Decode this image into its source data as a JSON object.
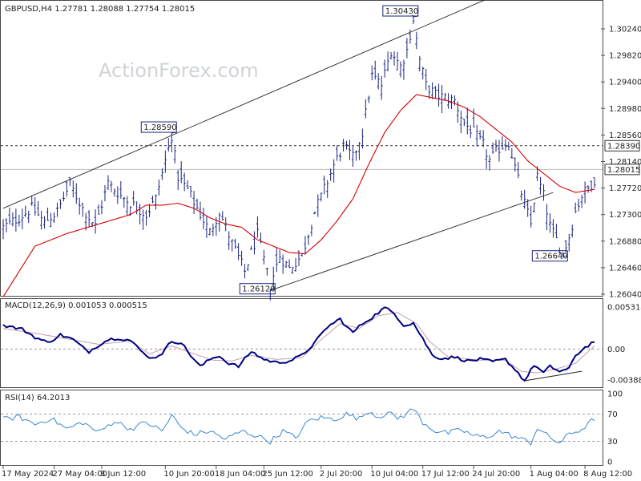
{
  "chart_data": {
    "type": "ohlc",
    "symbol_line": "GBPUSD,H4  1.27781 1.28088 1.27754 1.28015",
    "watermark": "ActionForex.com",
    "price_axis": {
      "ylim": [
        1.26,
        1.306
      ],
      "ticks": [
        "1.30240",
        "1.29820",
        "1.29400",
        "1.28980",
        "1.28560",
        "1.28140",
        "1.27720",
        "1.27300",
        "1.26880",
        "1.26460",
        "1.26040"
      ]
    },
    "current_price": "1.28015",
    "resistance_level": "1.28390",
    "annotations": [
      {
        "label": "1.30430",
        "bar": 129,
        "price": 1.3043
      },
      {
        "label": "1.28590",
        "bar": 53,
        "price": 1.2859
      },
      {
        "label": "1.26120",
        "bar": 84,
        "price": 1.2612
      },
      {
        "label": "1.26640",
        "bar": 176,
        "price": 1.2664
      }
    ],
    "price_keys": [
      [
        0,
        1.271
      ],
      [
        5,
        1.2725
      ],
      [
        9,
        1.274
      ],
      [
        13,
        1.2718
      ],
      [
        17,
        1.2735
      ],
      [
        21,
        1.2778
      ],
      [
        25,
        1.274
      ],
      [
        29,
        1.2712
      ],
      [
        33,
        1.278
      ],
      [
        37,
        1.276
      ],
      [
        41,
        1.2745
      ],
      [
        45,
        1.273
      ],
      [
        48,
        1.2755
      ],
      [
        53,
        1.2855
      ],
      [
        55,
        1.279
      ],
      [
        58,
        1.277
      ],
      [
        61,
        1.274
      ],
      [
        65,
        1.2702
      ],
      [
        68,
        1.2735
      ],
      [
        72,
        1.2685
      ],
      [
        76,
        1.264
      ],
      [
        80,
        1.2698
      ],
      [
        84,
        1.2618
      ],
      [
        87,
        1.2665
      ],
      [
        90,
        1.2645
      ],
      [
        94,
        1.2665
      ],
      [
        98,
        1.2735
      ],
      [
        101,
        1.277
      ],
      [
        104,
        1.2808
      ],
      [
        107,
        1.2838
      ],
      [
        110,
        1.282
      ],
      [
        113,
        1.286
      ],
      [
        116,
        1.295
      ],
      [
        119,
        1.2935
      ],
      [
        122,
        1.299
      ],
      [
        125,
        1.2965
      ],
      [
        127,
        1.299
      ],
      [
        129,
        1.304
      ],
      [
        131,
        1.2975
      ],
      [
        133,
        1.2935
      ],
      [
        136,
        1.292
      ],
      [
        139,
        1.2915
      ],
      [
        142,
        1.291
      ],
      [
        145,
        1.2875
      ],
      [
        148,
        1.286
      ],
      [
        151,
        1.284
      ],
      [
        153,
        1.2815
      ],
      [
        156,
        1.2835
      ],
      [
        159,
        1.2845
      ],
      [
        161,
        1.2805
      ],
      [
        163,
        1.2765
      ],
      [
        166,
        1.2715
      ],
      [
        168,
        1.279
      ],
      [
        170,
        1.276
      ],
      [
        172,
        1.2712
      ],
      [
        174,
        1.269
      ],
      [
        176,
        1.2668
      ],
      [
        178,
        1.2695
      ],
      [
        180,
        1.2735
      ],
      [
        182,
        1.276
      ],
      [
        184,
        1.2772
      ],
      [
        186,
        1.2785
      ]
    ],
    "ema_keys": [
      [
        0,
        1.26
      ],
      [
        10,
        1.268
      ],
      [
        20,
        1.27
      ],
      [
        30,
        1.2715
      ],
      [
        40,
        1.273
      ],
      [
        45,
        1.2745
      ],
      [
        50,
        1.2745
      ],
      [
        55,
        1.2748
      ],
      [
        60,
        1.274
      ],
      [
        65,
        1.2725
      ],
      [
        70,
        1.2715
      ],
      [
        75,
        1.271
      ],
      [
        80,
        1.269
      ],
      [
        85,
        1.268
      ],
      [
        90,
        1.267
      ],
      [
        95,
        1.2668
      ],
      [
        100,
        1.269
      ],
      [
        105,
        1.272
      ],
      [
        110,
        1.2755
      ],
      [
        115,
        1.281
      ],
      [
        120,
        1.286
      ],
      [
        125,
        1.2895
      ],
      [
        130,
        1.292
      ],
      [
        135,
        1.2915
      ],
      [
        140,
        1.291
      ],
      [
        145,
        1.29
      ],
      [
        150,
        1.2885
      ],
      [
        155,
        1.2865
      ],
      [
        160,
        1.2845
      ],
      [
        165,
        1.2815
      ],
      [
        170,
        1.2795
      ],
      [
        175,
        1.2775
      ],
      [
        180,
        1.2765
      ],
      [
        186,
        1.277
      ]
    ],
    "channel_upper": [
      [
        0,
        1.274
      ],
      [
        153,
        1.3073
      ]
    ],
    "channel_lower": [
      [
        84,
        1.261
      ],
      [
        173,
        1.2765
      ]
    ],
    "macd": {
      "label": "MACD(12,26,9) 0.001053 0.000515",
      "ticks": [
        "0.005314",
        "0.00",
        "-0.003885"
      ],
      "ylim": [
        -0.0045,
        0.0058
      ],
      "keys": [
        [
          0,
          0.003
        ],
        [
          6,
          0.0025
        ],
        [
          10,
          0.0015
        ],
        [
          14,
          0.0008
        ],
        [
          18,
          0.0018
        ],
        [
          22,
          0.0012
        ],
        [
          25,
          0.0002
        ],
        [
          27,
          -0.0003
        ],
        [
          30,
          0.0005
        ],
        [
          33,
          0.0012
        ],
        [
          36,
          0.0014
        ],
        [
          40,
          0.0011
        ],
        [
          44,
          -0.0005
        ],
        [
          47,
          -0.0012
        ],
        [
          50,
          -0.0005
        ],
        [
          53,
          0.001
        ],
        [
          56,
          0.0008
        ],
        [
          59,
          -0.0008
        ],
        [
          62,
          -0.0022
        ],
        [
          65,
          -0.0013
        ],
        [
          68,
          -0.0008
        ],
        [
          70,
          -0.0016
        ],
        [
          74,
          -0.0022
        ],
        [
          78,
          -0.0003
        ],
        [
          82,
          -0.0013
        ],
        [
          86,
          -0.0017
        ],
        [
          90,
          -0.0015
        ],
        [
          94,
          -0.0008
        ],
        [
          98,
          0.0008
        ],
        [
          102,
          0.0028
        ],
        [
          106,
          0.0038
        ],
        [
          108,
          0.0028
        ],
        [
          110,
          0.0021
        ],
        [
          113,
          0.0032
        ],
        [
          116,
          0.004
        ],
        [
          120,
          0.0052
        ],
        [
          123,
          0.0045
        ],
        [
          126,
          0.003
        ],
        [
          129,
          0.0033
        ],
        [
          132,
          0.0013
        ],
        [
          135,
          -0.0008
        ],
        [
          138,
          -0.0012
        ],
        [
          142,
          -0.001
        ],
        [
          146,
          -0.0015
        ],
        [
          150,
          -0.0013
        ],
        [
          154,
          -0.0016
        ],
        [
          158,
          -0.0013
        ],
        [
          162,
          -0.003
        ],
        [
          164,
          -0.004
        ],
        [
          167,
          -0.002
        ],
        [
          170,
          -0.003
        ],
        [
          172,
          -0.0022
        ],
        [
          175,
          -0.0028
        ],
        [
          178,
          -0.0025
        ],
        [
          180,
          -0.0008
        ],
        [
          183,
          0.0002
        ],
        [
          186,
          0.001
        ]
      ],
      "signal_keys": [
        [
          0,
          0.0026
        ],
        [
          10,
          0.002
        ],
        [
          20,
          0.0013
        ],
        [
          30,
          0.0006
        ],
        [
          40,
          0.001
        ],
        [
          46,
          -0.0006
        ],
        [
          53,
          0.0004
        ],
        [
          60,
          -0.0006
        ],
        [
          66,
          -0.0014
        ],
        [
          72,
          -0.0015
        ],
        [
          78,
          -0.0008
        ],
        [
          86,
          -0.0013
        ],
        [
          94,
          -0.0011
        ],
        [
          100,
          0.0012
        ],
        [
          106,
          0.0032
        ],
        [
          112,
          0.0026
        ],
        [
          118,
          0.0042
        ],
        [
          124,
          0.0046
        ],
        [
          130,
          0.0032
        ],
        [
          134,
          0.001
        ],
        [
          140,
          -0.001
        ],
        [
          150,
          -0.0014
        ],
        [
          158,
          -0.0014
        ],
        [
          163,
          -0.0028
        ],
        [
          168,
          -0.003
        ],
        [
          174,
          -0.0025
        ],
        [
          180,
          -0.0018
        ],
        [
          186,
          0.0004
        ]
      ],
      "divergence": [
        [
          164,
          -0.004
        ],
        [
          182,
          -0.0028
        ]
      ]
    },
    "rsi": {
      "label": "RSI(14) 64.2013",
      "ticks": [
        "100",
        "70",
        "30",
        "0"
      ],
      "ylim": [
        0,
        100
      ],
      "levels": [
        70,
        30
      ],
      "keys": [
        [
          0,
          62
        ],
        [
          5,
          66
        ],
        [
          10,
          55
        ],
        [
          15,
          64
        ],
        [
          20,
          48
        ],
        [
          25,
          58
        ],
        [
          30,
          43
        ],
        [
          35,
          60
        ],
        [
          40,
          48
        ],
        [
          45,
          58
        ],
        [
          50,
          45
        ],
        [
          53,
          68
        ],
        [
          56,
          50
        ],
        [
          60,
          40
        ],
        [
          65,
          45
        ],
        [
          70,
          33
        ],
        [
          75,
          45
        ],
        [
          80,
          38
        ],
        [
          84,
          30
        ],
        [
          88,
          45
        ],
        [
          92,
          35
        ],
        [
          96,
          60
        ],
        [
          100,
          65
        ],
        [
          104,
          62
        ],
        [
          108,
          70
        ],
        [
          112,
          63
        ],
        [
          115,
          75
        ],
        [
          118,
          66
        ],
        [
          121,
          72
        ],
        [
          124,
          64
        ],
        [
          126,
          68
        ],
        [
          129,
          78
        ],
        [
          132,
          58
        ],
        [
          136,
          45
        ],
        [
          140,
          42
        ],
        [
          144,
          47
        ],
        [
          148,
          38
        ],
        [
          152,
          36
        ],
        [
          156,
          45
        ],
        [
          160,
          38
        ],
        [
          163,
          33
        ],
        [
          166,
          28
        ],
        [
          168,
          50
        ],
        [
          172,
          35
        ],
        [
          175,
          28
        ],
        [
          178,
          40
        ],
        [
          182,
          48
        ],
        [
          184,
          55
        ],
        [
          186,
          64
        ]
      ]
    },
    "time_axis": [
      {
        "label": "17 May 2024",
        "bar": 0
      },
      {
        "label": "27 May 04:00",
        "bar": 16
      },
      {
        "label": "3 Jun 12:00",
        "bar": 31
      },
      {
        "label": "10 Jun 20:00",
        "bar": 51
      },
      {
        "label": "18 Jun 04:00",
        "bar": 67
      },
      {
        "label": "25 Jun 12:00",
        "bar": 82
      },
      {
        "label": "2 Jul 20:00",
        "bar": 100
      },
      {
        "label": "10 Jul 04:00",
        "bar": 116
      },
      {
        "label": "17 Jul 12:00",
        "bar": 132
      },
      {
        "label": "24 Jul 20:00",
        "bar": 148
      },
      {
        "label": "1 Aug 04:00",
        "bar": 166
      },
      {
        "label": "8 Aug 12:00",
        "bar": 183
      }
    ],
    "total_bars": 187,
    "colors": {
      "bars": "#1a237e",
      "ema": "#d50000",
      "macd": "#000080",
      "signal": "#c0a0b0",
      "rsi": "#3a86d4",
      "grid": "#c8c8c8"
    }
  }
}
